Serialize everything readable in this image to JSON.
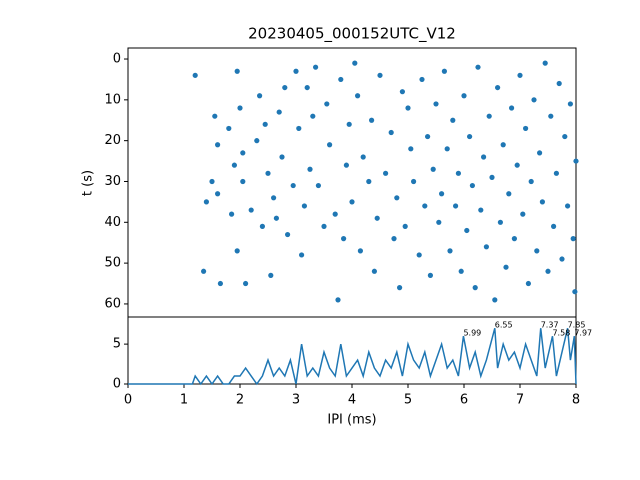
{
  "chart_data": [
    {
      "type": "scatter",
      "title": "20230405_000152UTC_V12",
      "y_label": "t (s)",
      "color": "#1f77b4",
      "xlim": [
        0,
        8
      ],
      "ylim": [
        63.2,
        -2.7
      ],
      "yticks": [
        0,
        10,
        20,
        30,
        40,
        50,
        60
      ],
      "x": [
        1.2,
        1.35,
        1.4,
        1.5,
        1.55,
        1.6,
        1.65,
        1.6,
        1.8,
        1.85,
        1.9,
        1.95,
        1.95,
        2.0,
        2.05,
        2.1,
        2.05,
        2.2,
        2.3,
        2.35,
        2.4,
        2.45,
        2.5,
        2.55,
        2.6,
        2.65,
        2.7,
        2.75,
        2.8,
        2.85,
        2.95,
        3.0,
        3.05,
        3.1,
        3.15,
        3.2,
        3.25,
        3.3,
        3.35,
        3.4,
        3.5,
        3.55,
        3.6,
        3.7,
        3.75,
        3.8,
        3.85,
        3.9,
        3.95,
        4.0,
        4.05,
        4.1,
        4.15,
        4.2,
        4.3,
        4.35,
        4.4,
        4.45,
        4.5,
        4.6,
        4.7,
        4.75,
        4.8,
        4.85,
        4.9,
        4.95,
        5.0,
        5.05,
        5.1,
        5.2,
        5.25,
        5.3,
        5.35,
        5.4,
        5.45,
        5.5,
        5.55,
        5.6,
        5.65,
        5.7,
        5.75,
        5.8,
        5.85,
        5.9,
        5.95,
        6.0,
        6.05,
        6.1,
        6.15,
        6.2,
        6.25,
        6.3,
        6.35,
        6.4,
        6.45,
        6.5,
        6.55,
        6.6,
        6.65,
        6.7,
        6.75,
        6.8,
        6.85,
        6.9,
        6.95,
        7.0,
        7.05,
        7.1,
        7.15,
        7.2,
        7.25,
        7.3,
        7.35,
        7.4,
        7.45,
        7.5,
        7.55,
        7.6,
        7.65,
        7.7,
        7.75,
        7.8,
        7.85,
        7.9,
        7.95,
        8.0,
        7.98
      ],
      "values": [
        4,
        52,
        35,
        30,
        14,
        21,
        55,
        33,
        17,
        38,
        26,
        47,
        3,
        12,
        23,
        55,
        30,
        37,
        20,
        9,
        41,
        16,
        28,
        53,
        34,
        39,
        13,
        24,
        7,
        43,
        31,
        3,
        17,
        48,
        36,
        7,
        27,
        14,
        2,
        31,
        41,
        11,
        21,
        38,
        59,
        5,
        44,
        26,
        16,
        35,
        1,
        9,
        47,
        24,
        30,
        15,
        52,
        39,
        4,
        28,
        18,
        44,
        34,
        56,
        8,
        41,
        12,
        22,
        30,
        48,
        5,
        36,
        19,
        53,
        27,
        11,
        40,
        33,
        3,
        22,
        47,
        15,
        36,
        28,
        52,
        9,
        42,
        19,
        31,
        56,
        2,
        37,
        24,
        46,
        14,
        29,
        59,
        7,
        40,
        21,
        51,
        33,
        12,
        44,
        26,
        4,
        38,
        17,
        55,
        30,
        10,
        47,
        23,
        35,
        1,
        52,
        14,
        41,
        28,
        6,
        49,
        19,
        36,
        11,
        44,
        25,
        57
      ]
    },
    {
      "type": "line",
      "x_label": "IPI (ms)",
      "color": "#1f77b4",
      "xlim": [
        0,
        8
      ],
      "ylim": [
        0,
        8.4
      ],
      "xticks": [
        0,
        1,
        2,
        3,
        4,
        5,
        6,
        7,
        8
      ],
      "yticks": [
        0,
        5
      ],
      "x": [
        0,
        1.15,
        1.2,
        1.3,
        1.4,
        1.5,
        1.6,
        1.7,
        1.8,
        1.9,
        2.0,
        2.1,
        2.2,
        2.3,
        2.4,
        2.5,
        2.6,
        2.7,
        2.8,
        2.9,
        3.0,
        3.1,
        3.2,
        3.3,
        3.4,
        3.5,
        3.6,
        3.7,
        3.8,
        3.9,
        4.0,
        4.1,
        4.2,
        4.3,
        4.4,
        4.5,
        4.6,
        4.7,
        4.8,
        4.9,
        5.0,
        5.1,
        5.2,
        5.3,
        5.4,
        5.5,
        5.6,
        5.7,
        5.8,
        5.9,
        5.99,
        6.1,
        6.2,
        6.3,
        6.4,
        6.55,
        6.6,
        6.7,
        6.8,
        6.9,
        7.0,
        7.1,
        7.2,
        7.3,
        7.37,
        7.45,
        7.58,
        7.65,
        7.75,
        7.85,
        7.9,
        7.97,
        8.0
      ],
      "values": [
        0,
        0,
        1,
        0,
        1,
        0,
        1,
        0,
        0,
        1,
        1,
        2,
        1,
        0,
        1,
        3,
        1,
        2,
        1,
        3,
        0,
        5,
        1,
        2,
        1,
        4,
        2,
        1,
        5,
        1,
        2,
        3,
        1,
        4,
        2,
        1,
        3,
        2,
        4,
        1,
        5,
        3,
        2,
        4,
        1,
        3,
        5,
        2,
        3,
        1,
        6,
        2,
        4,
        1,
        3,
        7,
        2,
        5,
        3,
        4,
        2,
        5,
        3,
        1,
        7,
        2,
        6,
        1,
        4,
        7,
        3,
        6,
        0
      ],
      "annotations": [
        {
          "x": 5.99,
          "y": 6
        },
        {
          "x": 6.55,
          "y": 7
        },
        {
          "x": 7.37,
          "y": 7
        },
        {
          "x": 7.58,
          "y": 6
        },
        {
          "x": 7.85,
          "y": 7
        },
        {
          "x": 7.97,
          "y": 6
        }
      ]
    }
  ]
}
